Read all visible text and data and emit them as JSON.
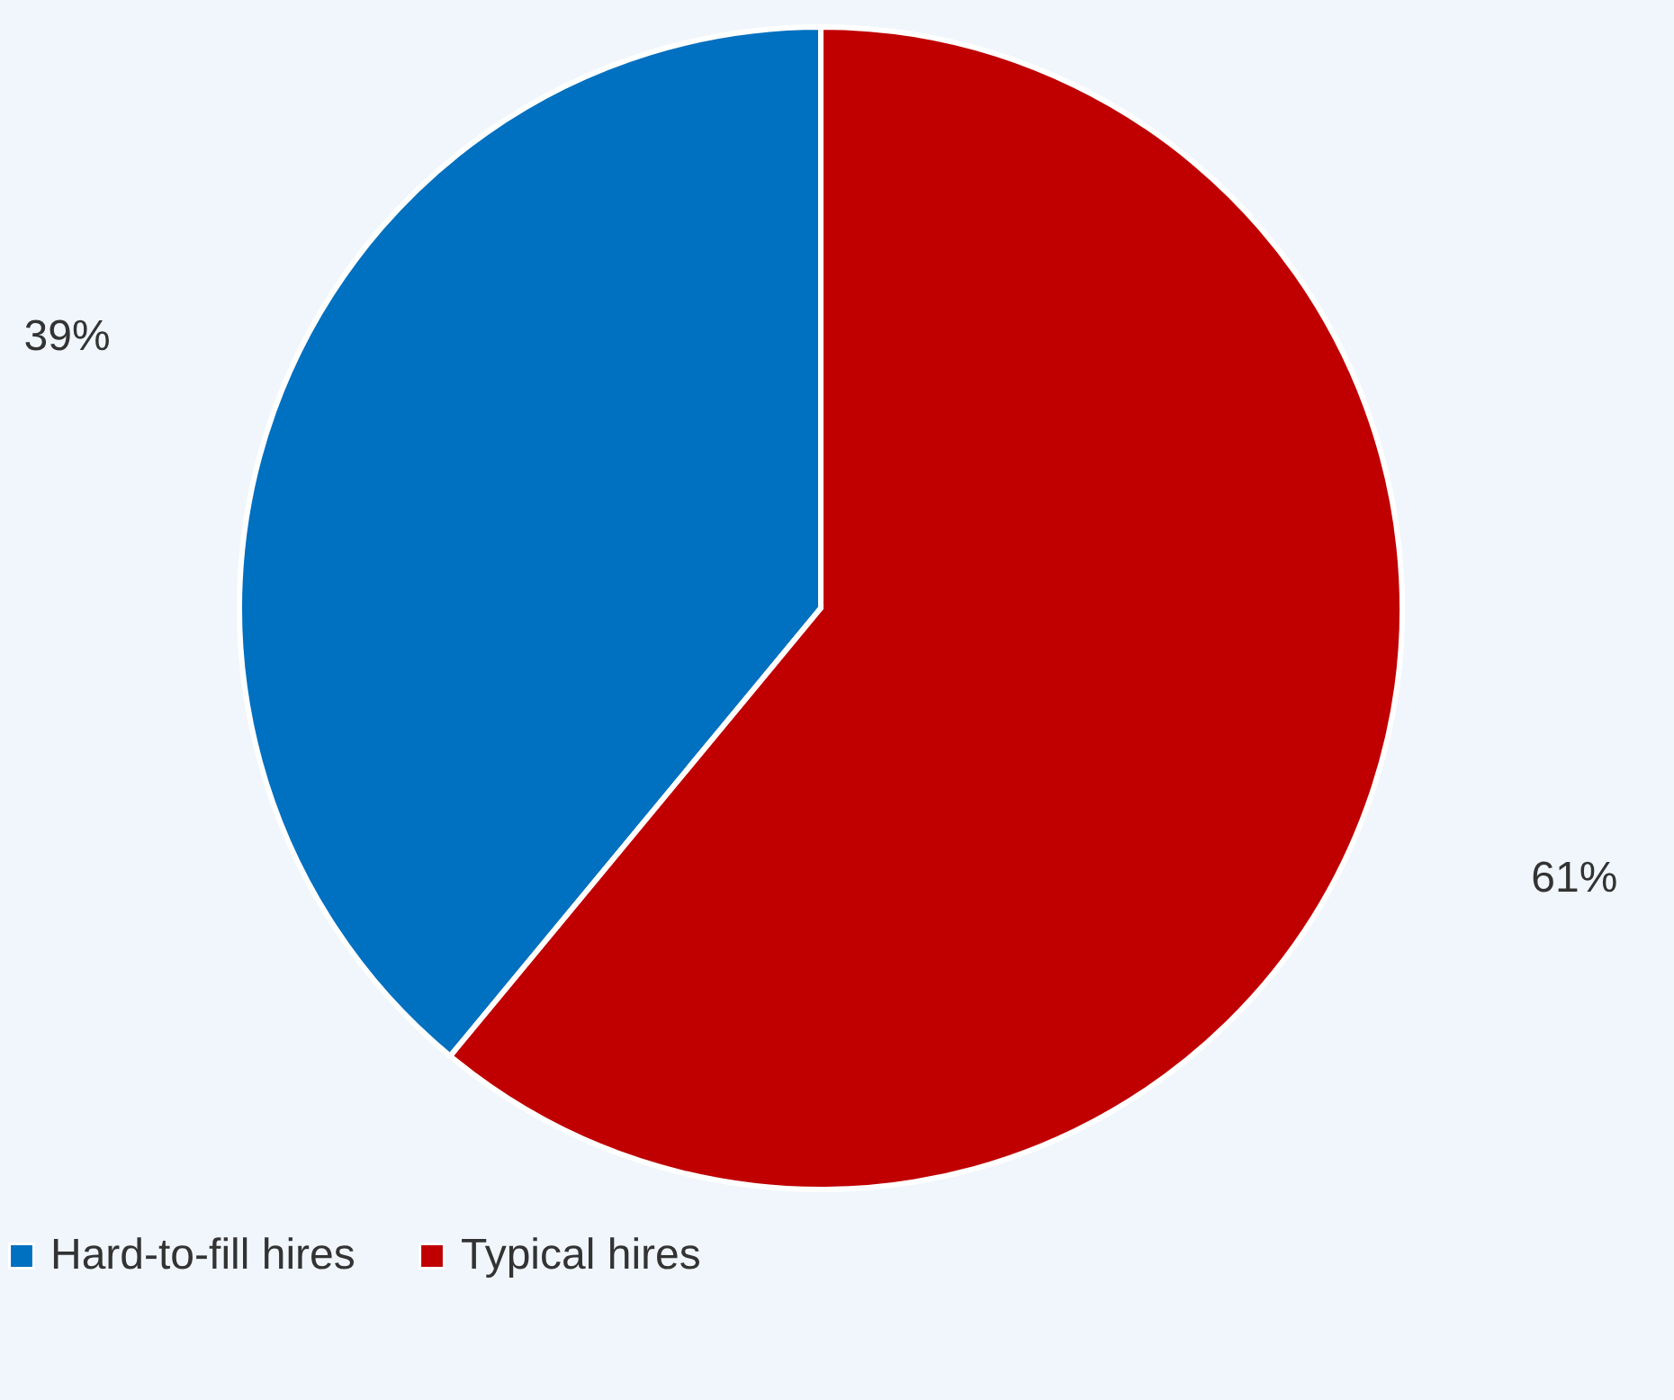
{
  "chart_data": {
    "type": "pie",
    "categories": [
      "Hard-to-fill hires",
      "Typical hires"
    ],
    "values": [
      39,
      61
    ],
    "colors": [
      "#0070c0",
      "#c00000"
    ],
    "value_labels": [
      "39%",
      "61%"
    ],
    "legend": "bottom"
  }
}
